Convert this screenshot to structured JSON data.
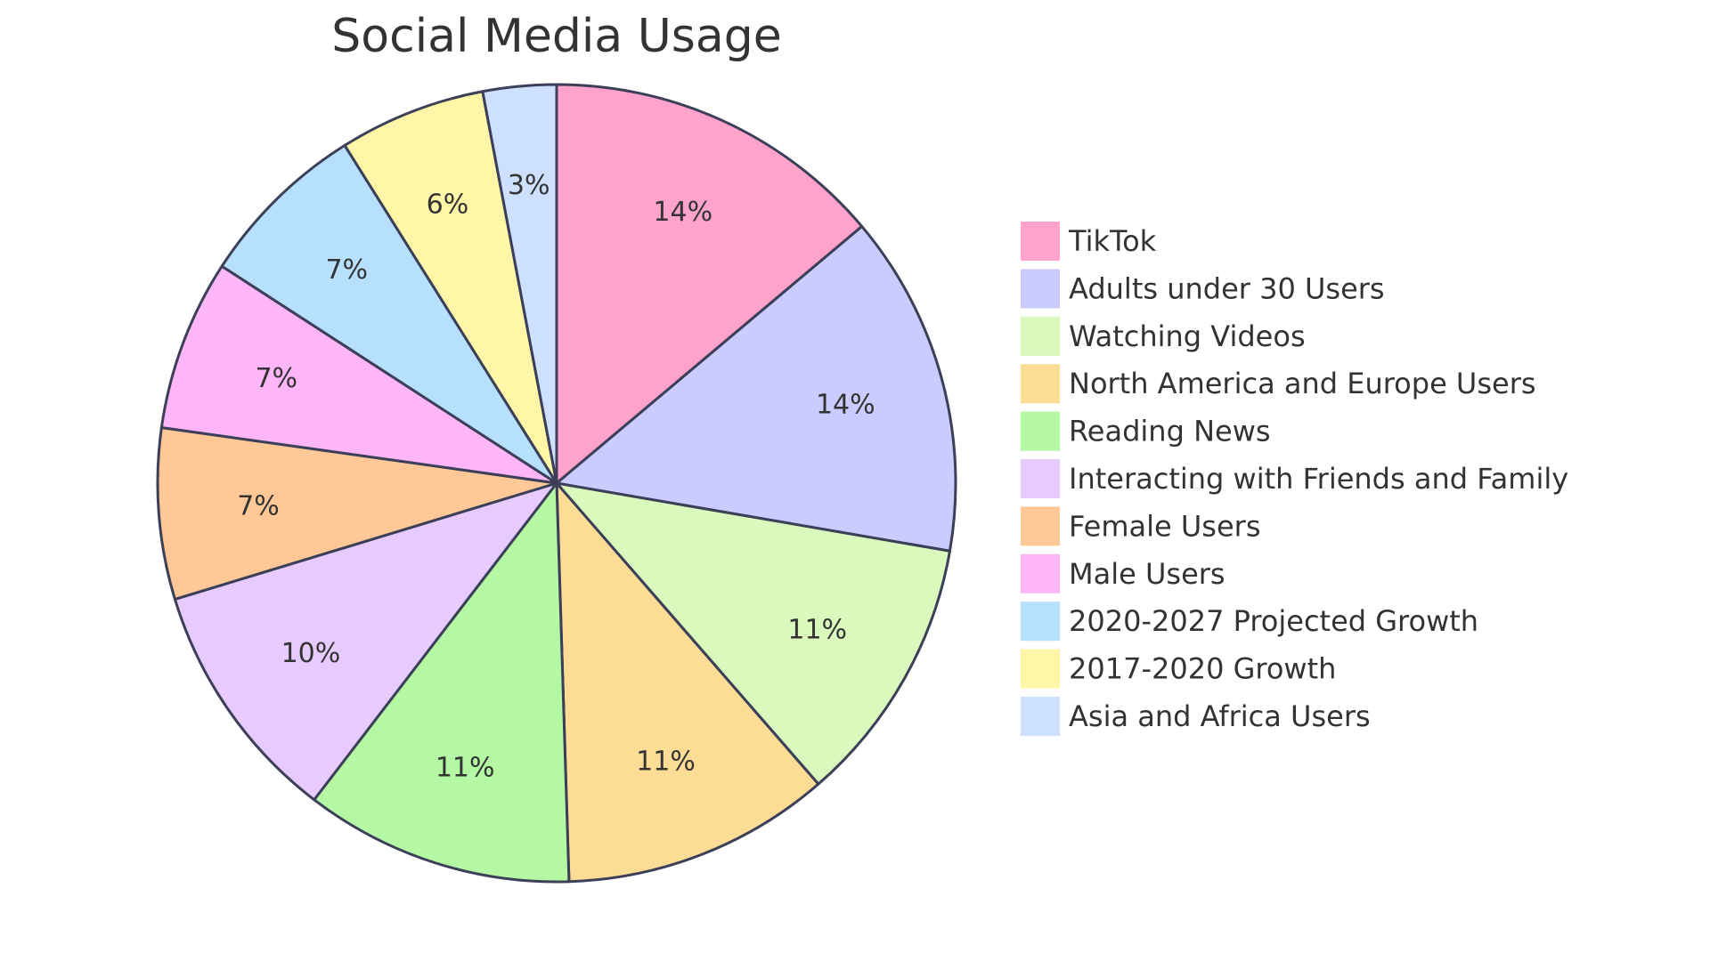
{
  "chart_data": {
    "type": "pie",
    "title": "Social Media Usage",
    "legend_position": "right",
    "slices": [
      {
        "label": "TikTok",
        "value": 14,
        "display": "14%",
        "color": "#FFA3CC"
      },
      {
        "label": "Adults under 30 Users",
        "value": 14,
        "display": "14%",
        "color": "#CACBFF"
      },
      {
        "label": "Watching Videos",
        "value": 11,
        "display": "11%",
        "color": "#DAF9BC"
      },
      {
        "label": "North America and Europe Users",
        "value": 11,
        "display": "11%",
        "color": "#FDDD96"
      },
      {
        "label": "Reading News",
        "value": 11,
        "display": "11%",
        "color": "#B5F8A4"
      },
      {
        "label": "Interacting with Friends and Family",
        "value": 10,
        "display": "10%",
        "color": "#E7CBFF"
      },
      {
        "label": "Female Users",
        "value": 7,
        "display": "7%",
        "color": "#FFC896"
      },
      {
        "label": "Male Users",
        "value": 7,
        "display": "7%",
        "color": "#FFB6F8"
      },
      {
        "label": "2020-2027 Projected Growth",
        "value": 7,
        "display": "7%",
        "color": "#B7E0FF"
      },
      {
        "label": "2017-2020 Growth",
        "value": 6,
        "display": "6%",
        "color": "#FFF6A8"
      },
      {
        "label": "Asia and Africa Users",
        "value": 3,
        "display": "3%",
        "color": "#CDE1FF"
      }
    ]
  }
}
